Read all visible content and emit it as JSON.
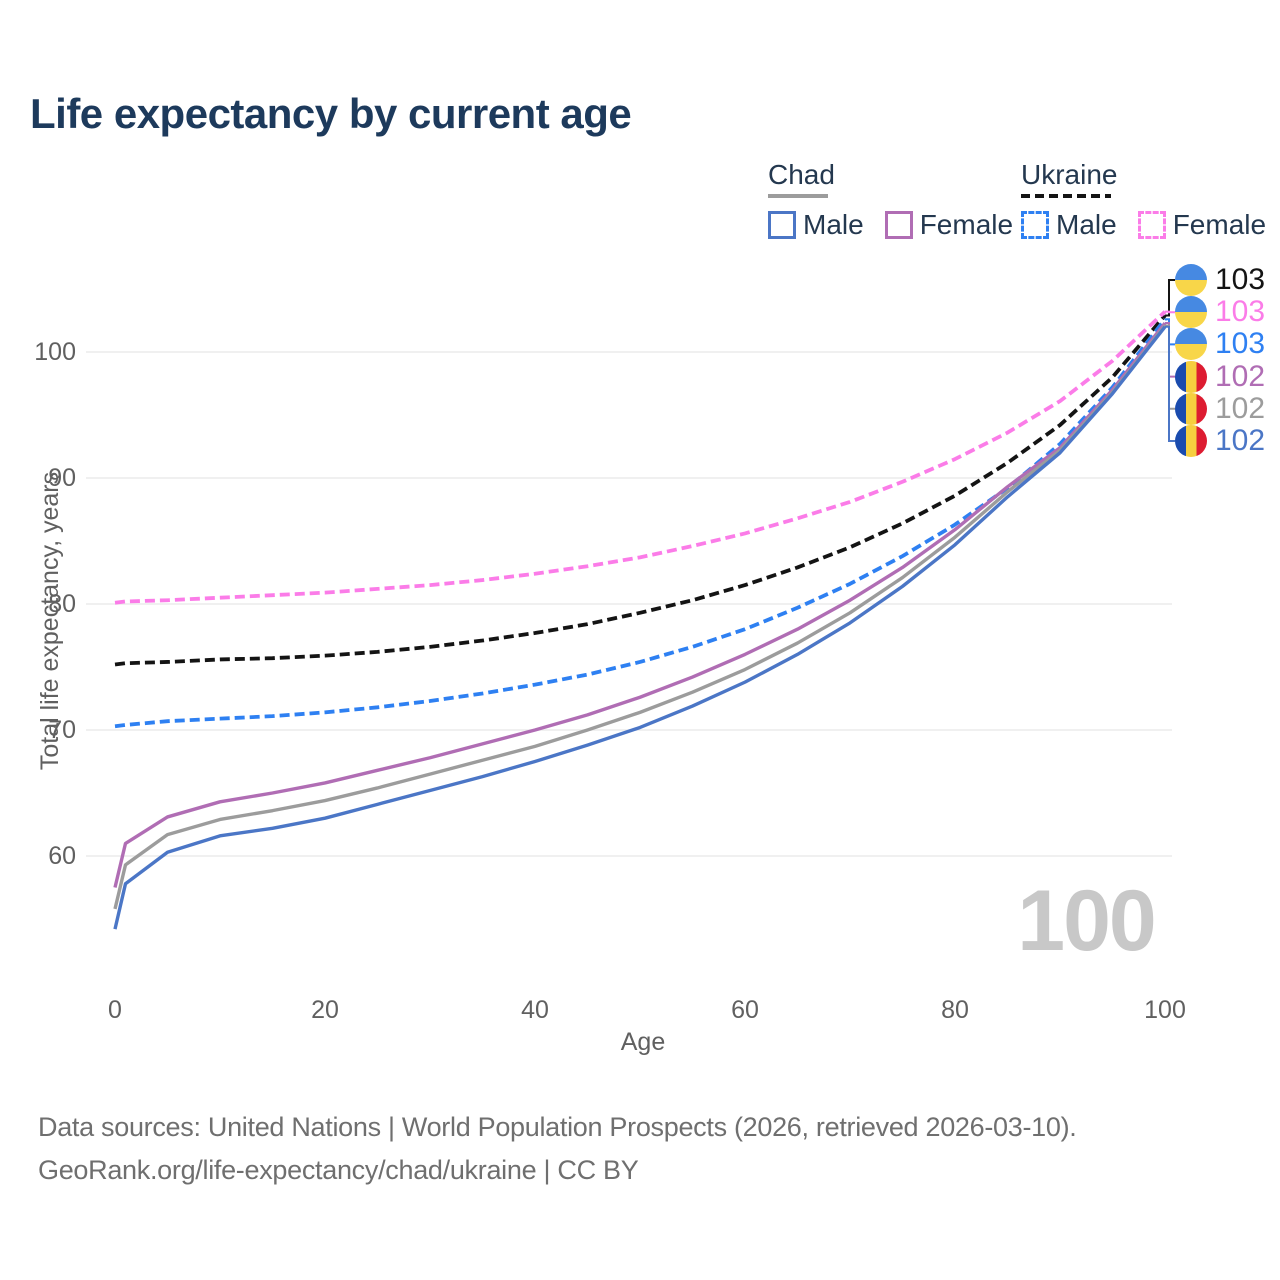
{
  "title": "Life expectancy by current age",
  "legend": {
    "groups": [
      {
        "name": "Chad",
        "items": [
          {
            "label": "Male"
          },
          {
            "label": "Female"
          }
        ]
      },
      {
        "name": "Ukraine",
        "items": [
          {
            "label": "Male"
          },
          {
            "label": "Female"
          }
        ]
      }
    ]
  },
  "chart_data": {
    "type": "line",
    "title": "Life expectancy by current age",
    "xlabel": "Age",
    "ylabel": "Total life expectancy, years",
    "x_ticks": [
      "0",
      "20",
      "40",
      "60",
      "80",
      "100"
    ],
    "y_ticks": [
      "100",
      "90",
      "80",
      "70",
      "60"
    ],
    "xlim": [
      0,
      100
    ],
    "ylim": [
      52,
      104
    ],
    "grid": true,
    "legend_position": "top-right",
    "watermark": "100",
    "x": [
      0,
      1,
      5,
      10,
      15,
      20,
      25,
      30,
      35,
      40,
      45,
      50,
      55,
      60,
      65,
      70,
      75,
      80,
      85,
      90,
      95,
      100
    ],
    "series": [
      {
        "name": "Ukraine — Total",
        "country": "Ukraine",
        "sex": "Total",
        "color": "#141414",
        "dashed": true,
        "flag": "ukraine",
        "end_label": "103",
        "values": [
          75.2,
          75.3,
          75.4,
          75.6,
          75.7,
          75.9,
          76.2,
          76.6,
          77.1,
          77.7,
          78.4,
          79.3,
          80.3,
          81.5,
          82.9,
          84.5,
          86.4,
          88.6,
          91.2,
          94.2,
          98.0,
          102.9
        ]
      },
      {
        "name": "Ukraine — Female",
        "country": "Ukraine",
        "sex": "Female",
        "color": "#fb7ce8",
        "dashed": true,
        "flag": "ukraine",
        "end_label": "103",
        "values": [
          80.1,
          80.2,
          80.3,
          80.5,
          80.7,
          80.9,
          81.2,
          81.5,
          81.9,
          82.4,
          83.0,
          83.7,
          84.6,
          85.6,
          86.8,
          88.1,
          89.7,
          91.5,
          93.6,
          96.1,
          99.3,
          103.2
        ]
      },
      {
        "name": "Ukraine — Male",
        "country": "Ukraine",
        "sex": "Male",
        "color": "#2e80f2",
        "dashed": true,
        "flag": "ukraine",
        "end_label": "103",
        "values": [
          70.3,
          70.4,
          70.7,
          70.9,
          71.1,
          71.4,
          71.8,
          72.3,
          72.9,
          73.6,
          74.4,
          75.4,
          76.6,
          78.0,
          79.7,
          81.6,
          83.8,
          86.3,
          89.2,
          92.7,
          97.2,
          102.6
        ]
      },
      {
        "name": "Chad — Female",
        "country": "Chad",
        "sex": "Female",
        "color": "#b06db4",
        "dashed": false,
        "flag": "chad",
        "end_label": "102",
        "values": [
          57.5,
          61.0,
          63.1,
          64.3,
          65.0,
          65.8,
          66.8,
          67.8,
          68.9,
          70.0,
          71.2,
          72.6,
          74.2,
          76.0,
          78.0,
          80.3,
          82.9,
          85.9,
          89.3,
          92.4,
          97.0,
          102.3
        ]
      },
      {
        "name": "Chad — Total",
        "country": "Chad",
        "sex": "Total",
        "color": "#9c9c9c",
        "dashed": false,
        "flag": "chad",
        "end_label": "102",
        "values": [
          55.8,
          59.3,
          61.7,
          62.9,
          63.6,
          64.4,
          65.4,
          66.5,
          67.6,
          68.7,
          70.0,
          71.4,
          73.0,
          74.8,
          76.9,
          79.3,
          82.1,
          85.3,
          88.9,
          92.2,
          96.8,
          102.1
        ]
      },
      {
        "name": "Chad — Male",
        "country": "Chad",
        "sex": "Male",
        "color": "#4b76c6",
        "dashed": false,
        "flag": "chad",
        "end_label": "102",
        "values": [
          54.2,
          57.8,
          60.3,
          61.6,
          62.2,
          63.0,
          64.1,
          65.2,
          66.3,
          67.5,
          68.8,
          70.2,
          71.9,
          73.8,
          76.0,
          78.5,
          81.4,
          84.7,
          88.5,
          92.0,
          96.7,
          102.0
        ]
      }
    ],
    "flags": {
      "ukraine": {
        "orientation": "horizontal",
        "colors": [
          "#4689e2",
          "#f8d649"
        ]
      },
      "chad": {
        "orientation": "vertical",
        "colors": [
          "#1a4bae",
          "#f6cf3f",
          "#dd1c31"
        ]
      }
    }
  },
  "footer": {
    "line1": "Data sources: United Nations | World Population Prospects (2026, retrieved 2026-03-10).",
    "line2": "GeoRank.org/life-expectancy/chad/ukraine | CC BY"
  }
}
